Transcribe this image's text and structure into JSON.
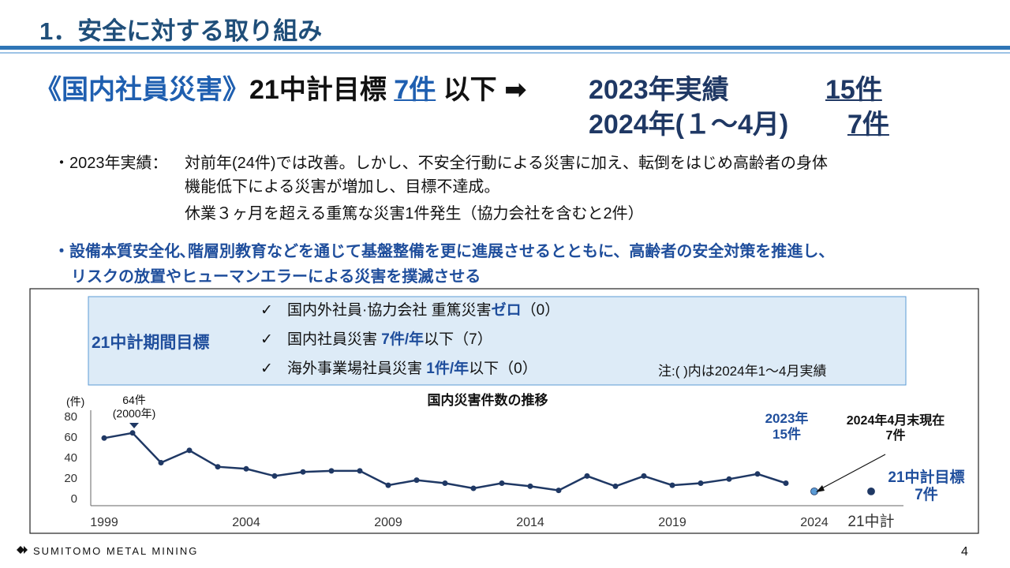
{
  "header": {
    "title": "1．安全に対する取り組み"
  },
  "headline": {
    "label": "《国内社員災害》",
    "target_label": "21中計目標",
    "target_value": "7件",
    "target_suffix": "以下",
    "arrow": "➡",
    "actual_2023_label": "2023年実績",
    "actual_2023_value": "15件",
    "actual_2024_label": "2024年(１～4月)",
    "actual_2024_value": "7件"
  },
  "notes": {
    "label": "・2023年実績：",
    "lines": [
      "対前年(24件)では改善。しかし、不安全行動による災害に加え、転倒をはじめ高齢者の身体",
      "機能低下による災害が増加し、目標不達成。",
      "休業３ヶ月を超える重篤な災害1件発生（協力会社を含むと2件）"
    ]
  },
  "policy": [
    "・設備本質安全化､階層別教育などを通じて基盤整備を更に進展させるとともに、高齢者の安全対策を推進し、",
    "リスクの放置やヒューマンエラーによる災害を撲滅させる"
  ],
  "targets": {
    "title": "21中計期間目標",
    "check": "✓",
    "items": [
      [
        {
          "text": "国内外社員·協力会社 重篤災害",
          "bold": false
        },
        {
          "text": "ゼロ",
          "bold": true
        },
        {
          "text": "（0）",
          "bold": false
        }
      ],
      [
        {
          "text": "国内社員災害 ",
          "bold": false
        },
        {
          "text": "7件/年",
          "bold": true
        },
        {
          "text": "以下（7）",
          "bold": false
        }
      ],
      [
        {
          "text": "海外事業場社員災害 ",
          "bold": false
        },
        {
          "text": "1件/年",
          "bold": true
        },
        {
          "text": "以下（0）",
          "bold": false
        }
      ]
    ],
    "note": "注:( )内は2024年1～4月実績"
  },
  "chart_data": {
    "type": "line",
    "title": "国内災害件数の推移",
    "y_label": "(件)",
    "categories": [
      "1999",
      null,
      null,
      null,
      null,
      "2004",
      null,
      null,
      null,
      null,
      "2009",
      null,
      null,
      null,
      null,
      "2014",
      null,
      null,
      null,
      null,
      "2019",
      null,
      null,
      null,
      null,
      "2024",
      null,
      "21中計"
    ],
    "series": [
      {
        "color": "#1f3864",
        "style": "line",
        "values": [
          59,
          64,
          35,
          47,
          31,
          29,
          22,
          26,
          27,
          27,
          13,
          18,
          15,
          10,
          15,
          12,
          8,
          22,
          12,
          22,
          13,
          15,
          19,
          24,
          15,
          null,
          null,
          null
        ]
      },
      {
        "color": "#5b9bd5",
        "style": "point",
        "values": [
          null,
          null,
          null,
          null,
          null,
          null,
          null,
          null,
          null,
          null,
          null,
          null,
          null,
          null,
          null,
          null,
          null,
          null,
          null,
          null,
          null,
          null,
          null,
          null,
          null,
          7,
          null,
          null
        ]
      },
      {
        "color": "#1f3864",
        "style": "point",
        "values": [
          null,
          null,
          null,
          null,
          null,
          null,
          null,
          null,
          null,
          null,
          null,
          null,
          null,
          null,
          null,
          null,
          null,
          null,
          null,
          null,
          null,
          null,
          null,
          null,
          null,
          null,
          null,
          7
        ]
      }
    ],
    "ylim": [
      0,
      80
    ],
    "yticks": [
      0,
      20,
      40,
      60,
      80
    ],
    "annotations": [
      [
        "64件",
        "(2000年)"
      ],
      [
        "2023年",
        "15件"
      ],
      [
        "2024年4月末現在",
        "7件"
      ],
      [
        "21中計目標",
        "7件"
      ]
    ]
  },
  "footer": {
    "logo": "SUMITOMO METAL MINING",
    "page": "4"
  }
}
